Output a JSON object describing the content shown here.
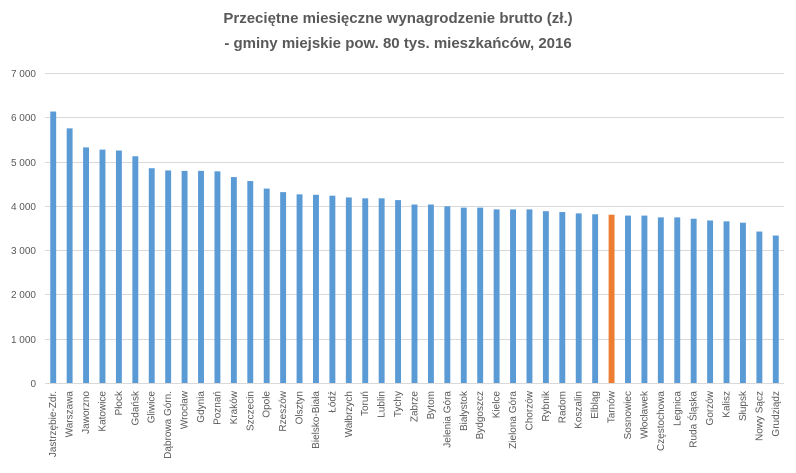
{
  "chart_data": {
    "type": "bar",
    "title": "Przeciętne miesięczne wynagrodzenie brutto (zł.)",
    "subtitle": "- gminy miejskie pow. 80 tys. mieszkańców, 2016",
    "xlabel": "",
    "ylabel": "",
    "ylim": [
      0,
      7000
    ],
    "yticks": [
      0,
      1000,
      2000,
      3000,
      4000,
      5000,
      6000,
      7000
    ],
    "ytick_labels": [
      "0",
      "1 000",
      "2 000",
      "3 000",
      "4 000",
      "5 000",
      "6 000",
      "7 000"
    ],
    "grid": true,
    "legend": "none",
    "colors": {
      "default": "#5b9bd5",
      "highlight": "#ed7d31",
      "grid": "#d9d9d9",
      "text": "#595959"
    },
    "highlight_category": "Tarnów",
    "categories": [
      "Jastrzębie-Zdr.",
      "Warszawa",
      "Jaworzno",
      "Katowice",
      "Płock",
      "Gdańsk",
      "Gliwice",
      "Dąbrowa Górn.",
      "Wrocław",
      "Gdynia",
      "Poznań",
      "Kraków",
      "Szczecin",
      "Opole",
      "Rzeszów",
      "Olsztyn",
      "Bielsko-Biała",
      "Łódź",
      "Wałbrzych",
      "Toruń",
      "Lublin",
      "Tychy",
      "Zabrze",
      "Bytom",
      "Jelenia Góra",
      "Białystok",
      "Bydgoszcz",
      "Kielce",
      "Zielona Góra",
      "Chorzów",
      "Rybnik",
      "Radom",
      "Koszalin",
      "Elbląg",
      "Tarnów",
      "Sosnowiec",
      "Włocławek",
      "Częstochowa",
      "Legnica",
      "Ruda Śląska",
      "Gorzów",
      "Kalisz",
      "Słupsk",
      "Nowy Sącz",
      "Grudziądz"
    ],
    "values": [
      6130,
      5750,
      5320,
      5270,
      5250,
      5120,
      4850,
      4800,
      4790,
      4790,
      4780,
      4650,
      4560,
      4390,
      4310,
      4260,
      4250,
      4230,
      4190,
      4170,
      4170,
      4130,
      4030,
      4030,
      3990,
      3960,
      3960,
      3920,
      3920,
      3920,
      3880,
      3860,
      3830,
      3810,
      3800,
      3780,
      3780,
      3740,
      3740,
      3710,
      3670,
      3650,
      3620,
      3420,
      3330
    ]
  }
}
